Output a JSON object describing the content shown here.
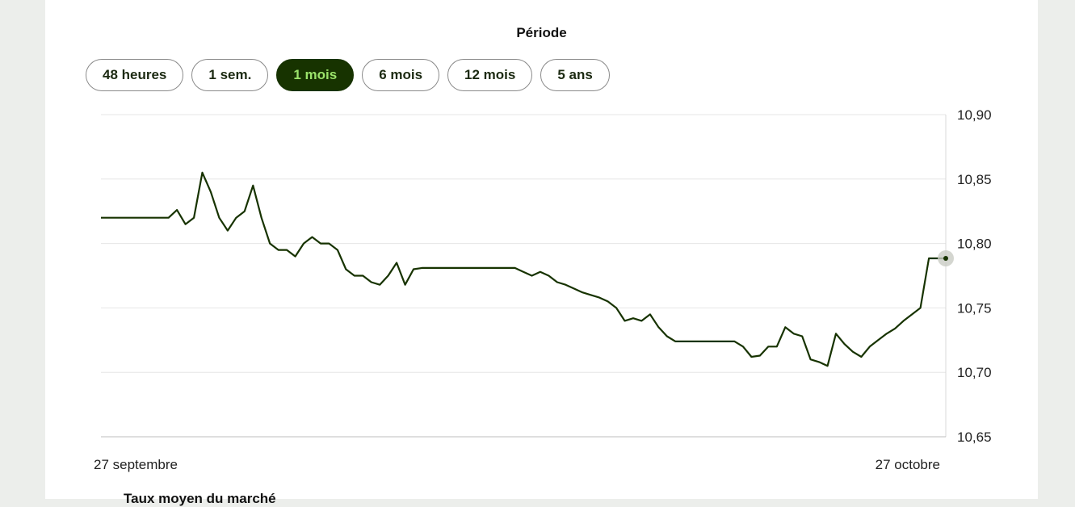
{
  "period": {
    "label": "Période",
    "buttons": [
      "48 heures",
      "1 sem.",
      "1 mois",
      "6 mois",
      "12 mois",
      "5 ans"
    ],
    "active": "1 mois"
  },
  "footer": {
    "legend_text": "Taux moyen du marché"
  },
  "colors": {
    "line": "#173300",
    "active_bg": "#173300",
    "active_text": "#9be36a",
    "grid": "#e6e6e6"
  },
  "chart_data": {
    "type": "line",
    "title": "",
    "xlabel": "",
    "ylabel": "",
    "x_tick_labels": [
      "27 septembre",
      "27 octobre"
    ],
    "y_ticks": [
      "10,90",
      "10,85",
      "10,80",
      "10,75",
      "10,70",
      "10,65"
    ],
    "ylim": [
      10.65,
      10.9
    ],
    "y_axis_side": "right",
    "grid": true,
    "series": [
      {
        "x": [
          0,
          2,
          3,
          4,
          5,
          6,
          7,
          8,
          9,
          10,
          11,
          12,
          13,
          14,
          15,
          16,
          17,
          18,
          19,
          20,
          21,
          22,
          23,
          24,
          25,
          26,
          27,
          28,
          29,
          30,
          31,
          32,
          33,
          34,
          35,
          36,
          37,
          38,
          39,
          40,
          41,
          42,
          43,
          44,
          45,
          46,
          47,
          48,
          49,
          50,
          51,
          52,
          53,
          54,
          55,
          56,
          57,
          58,
          59,
          60,
          61,
          62,
          63,
          64,
          65,
          66,
          67,
          68,
          69,
          70,
          71,
          72,
          73,
          74,
          75,
          76,
          77,
          78,
          79,
          80,
          81,
          82,
          83,
          84,
          85,
          86,
          87,
          88,
          89,
          90,
          91,
          92,
          93,
          94,
          95,
          96,
          97,
          98,
          99,
          100
        ],
        "values": [
          10.82,
          10.82,
          10.82,
          10.82,
          10.82,
          10.82,
          10.82,
          10.82,
          10.826,
          10.815,
          10.82,
          10.855,
          10.84,
          10.82,
          10.81,
          10.82,
          10.825,
          10.845,
          10.82,
          10.8,
          10.795,
          10.795,
          10.79,
          10.8,
          10.805,
          10.8,
          10.8,
          10.795,
          10.78,
          10.775,
          10.775,
          10.77,
          10.768,
          10.775,
          10.785,
          10.768,
          10.78,
          10.781,
          10.781,
          10.781,
          10.781,
          10.781,
          10.781,
          10.781,
          10.781,
          10.781,
          10.781,
          10.781,
          10.781,
          10.778,
          10.775,
          10.778,
          10.775,
          10.77,
          10.768,
          10.765,
          10.762,
          10.76,
          10.758,
          10.755,
          10.75,
          10.74,
          10.742,
          10.74,
          10.745,
          10.735,
          10.728,
          10.724,
          10.724,
          10.724,
          10.724,
          10.724,
          10.724,
          10.724,
          10.724,
          10.72,
          10.712,
          10.713,
          10.72,
          10.72,
          10.735,
          10.73,
          10.728,
          10.71,
          10.708,
          10.705,
          10.73,
          10.722,
          10.716,
          10.712,
          10.72,
          10.725,
          10.73,
          10.734,
          10.74,
          10.745,
          10.75,
          10.7885,
          10.7885,
          10.7885
        ]
      }
    ]
  }
}
